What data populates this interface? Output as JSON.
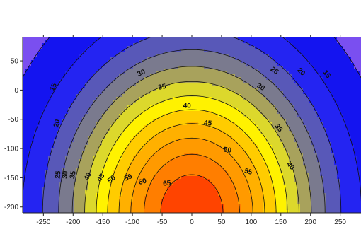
{
  "chart_data": {
    "type": "contour",
    "title": "",
    "xlabel": "",
    "ylabel": "",
    "xlim": [
      -285,
      285
    ],
    "ylim": [
      -210,
      90
    ],
    "x_ticks": [
      -250,
      -200,
      -150,
      -100,
      -50,
      0,
      50,
      100,
      150,
      200,
      250
    ],
    "y_ticks": [
      50,
      0,
      -50,
      -100,
      -150,
      -200
    ],
    "x_tick_labels": [
      "-250",
      "-200",
      "-150",
      "-100",
      "-50",
      "0",
      "50",
      "100",
      "150",
      "200",
      "250"
    ],
    "y_tick_labels": [
      "50",
      "0",
      "-50",
      "-100",
      "-150",
      "-200"
    ],
    "levels": [
      15,
      20,
      25,
      30,
      35,
      40,
      45,
      50,
      55,
      60,
      65,
      70
    ],
    "grid": false,
    "colormap": [
      {
        "max": 15,
        "color": "#7a4ff0"
      },
      {
        "max": 20,
        "color": "#1414f0"
      },
      {
        "max": 25,
        "color": "#2424f2"
      },
      {
        "max": 30,
        "color": "#5858b8"
      },
      {
        "max": 35,
        "color": "#7a7a8e"
      },
      {
        "max": 40,
        "color": "#a8a25c"
      },
      {
        "max": 45,
        "color": "#dcd82c"
      },
      {
        "max": 50,
        "color": "#fff200"
      },
      {
        "max": 55,
        "color": "#ffcc00"
      },
      {
        "max": 60,
        "color": "#ffb000"
      },
      {
        "max": 65,
        "color": "#ff9a00"
      },
      {
        "max": 70,
        "color": "#ff7e00"
      },
      {
        "max": 999,
        "color": "#ff4400"
      }
    ],
    "contour_labels": [
      {
        "text": "15",
        "x": -233,
        "y": 5,
        "angle": -65
      },
      {
        "text": "15",
        "x": 227,
        "y": 27,
        "angle": 55
      },
      {
        "text": "20",
        "x": -227,
        "y": -57,
        "angle": -75
      },
      {
        "text": "20",
        "x": 184,
        "y": 31,
        "angle": 45
      },
      {
        "text": "25",
        "x": -225,
        "y": -145,
        "angle": -85
      },
      {
        "text": "25",
        "x": 139,
        "y": 33,
        "angle": 35
      },
      {
        "text": "30",
        "x": -85,
        "y": 29,
        "angle": -25
      },
      {
        "text": "30",
        "x": 116,
        "y": 5,
        "angle": 32
      },
      {
        "text": "30",
        "x": -213,
        "y": -145,
        "angle": -85
      },
      {
        "text": "35",
        "x": -50,
        "y": 5,
        "angle": -10
      },
      {
        "text": "35",
        "x": -200,
        "y": -145,
        "angle": -80
      },
      {
        "text": "35",
        "x": 146,
        "y": -65,
        "angle": 50
      },
      {
        "text": "40",
        "x": -8,
        "y": -27,
        "angle": 0
      },
      {
        "text": "40",
        "x": -175,
        "y": -148,
        "angle": -65
      },
      {
        "text": "40",
        "x": 166,
        "y": -130,
        "angle": 50
      },
      {
        "text": "45",
        "x": 27,
        "y": -57,
        "angle": 5
      },
      {
        "text": "45",
        "x": -153,
        "y": -150,
        "angle": -55
      },
      {
        "text": "50",
        "x": 60,
        "y": -103,
        "angle": 8
      },
      {
        "text": "50",
        "x": -135,
        "y": -153,
        "angle": -40
      },
      {
        "text": "55",
        "x": 95,
        "y": -140,
        "angle": 15
      },
      {
        "text": "55",
        "x": -107,
        "y": -150,
        "angle": -25
      },
      {
        "text": "60",
        "x": -83,
        "y": -157,
        "angle": -15
      },
      {
        "text": "65",
        "x": -42,
        "y": -160,
        "angle": -5
      }
    ],
    "field_model": {
      "form": "v = base + amp * exp(-(x^2)/(sx^2) - ((y - y0)^2)/(sy^2))",
      "base": 11,
      "amp": 63,
      "y0": -210,
      "sx": 205,
      "sy": 255
    }
  }
}
